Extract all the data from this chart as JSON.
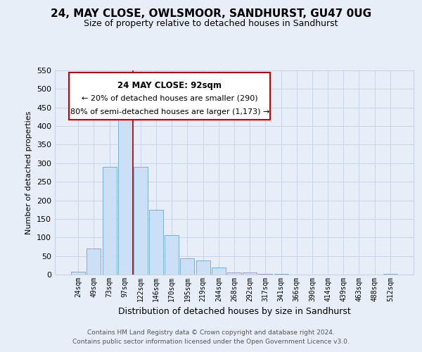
{
  "title": "24, MAY CLOSE, OWLSMOOR, SANDHURST, GU47 0UG",
  "subtitle": "Size of property relative to detached houses in Sandhurst",
  "xlabel": "Distribution of detached houses by size in Sandhurst",
  "ylabel": "Number of detached properties",
  "bar_labels": [
    "24sqm",
    "49sqm",
    "73sqm",
    "97sqm",
    "122sqm",
    "146sqm",
    "170sqm",
    "195sqm",
    "219sqm",
    "244sqm",
    "268sqm",
    "292sqm",
    "317sqm",
    "341sqm",
    "366sqm",
    "390sqm",
    "414sqm",
    "439sqm",
    "463sqm",
    "488sqm",
    "512sqm"
  ],
  "bar_values": [
    8,
    70,
    290,
    425,
    290,
    175,
    107,
    44,
    38,
    19,
    5,
    5,
    1,
    1,
    0,
    0,
    0,
    0,
    0,
    0,
    2
  ],
  "bar_color": "#cce0f5",
  "bar_edge_color": "#7ab0d8",
  "vline_x_index": 3,
  "vline_color": "#aa0000",
  "ylim": [
    0,
    550
  ],
  "yticks": [
    0,
    50,
    100,
    150,
    200,
    250,
    300,
    350,
    400,
    450,
    500,
    550
  ],
  "annotation_title": "24 MAY CLOSE: 92sqm",
  "annotation_line1": "← 20% of detached houses are smaller (290)",
  "annotation_line2": "80% of semi-detached houses are larger (1,173) →",
  "annotation_box_color": "#ffffff",
  "annotation_box_edge": "#cc0000",
  "grid_color": "#c8d4e8",
  "background_color": "#e8eef8",
  "footer_line1": "Contains HM Land Registry data © Crown copyright and database right 2024.",
  "footer_line2": "Contains public sector information licensed under the Open Government Licence v3.0."
}
